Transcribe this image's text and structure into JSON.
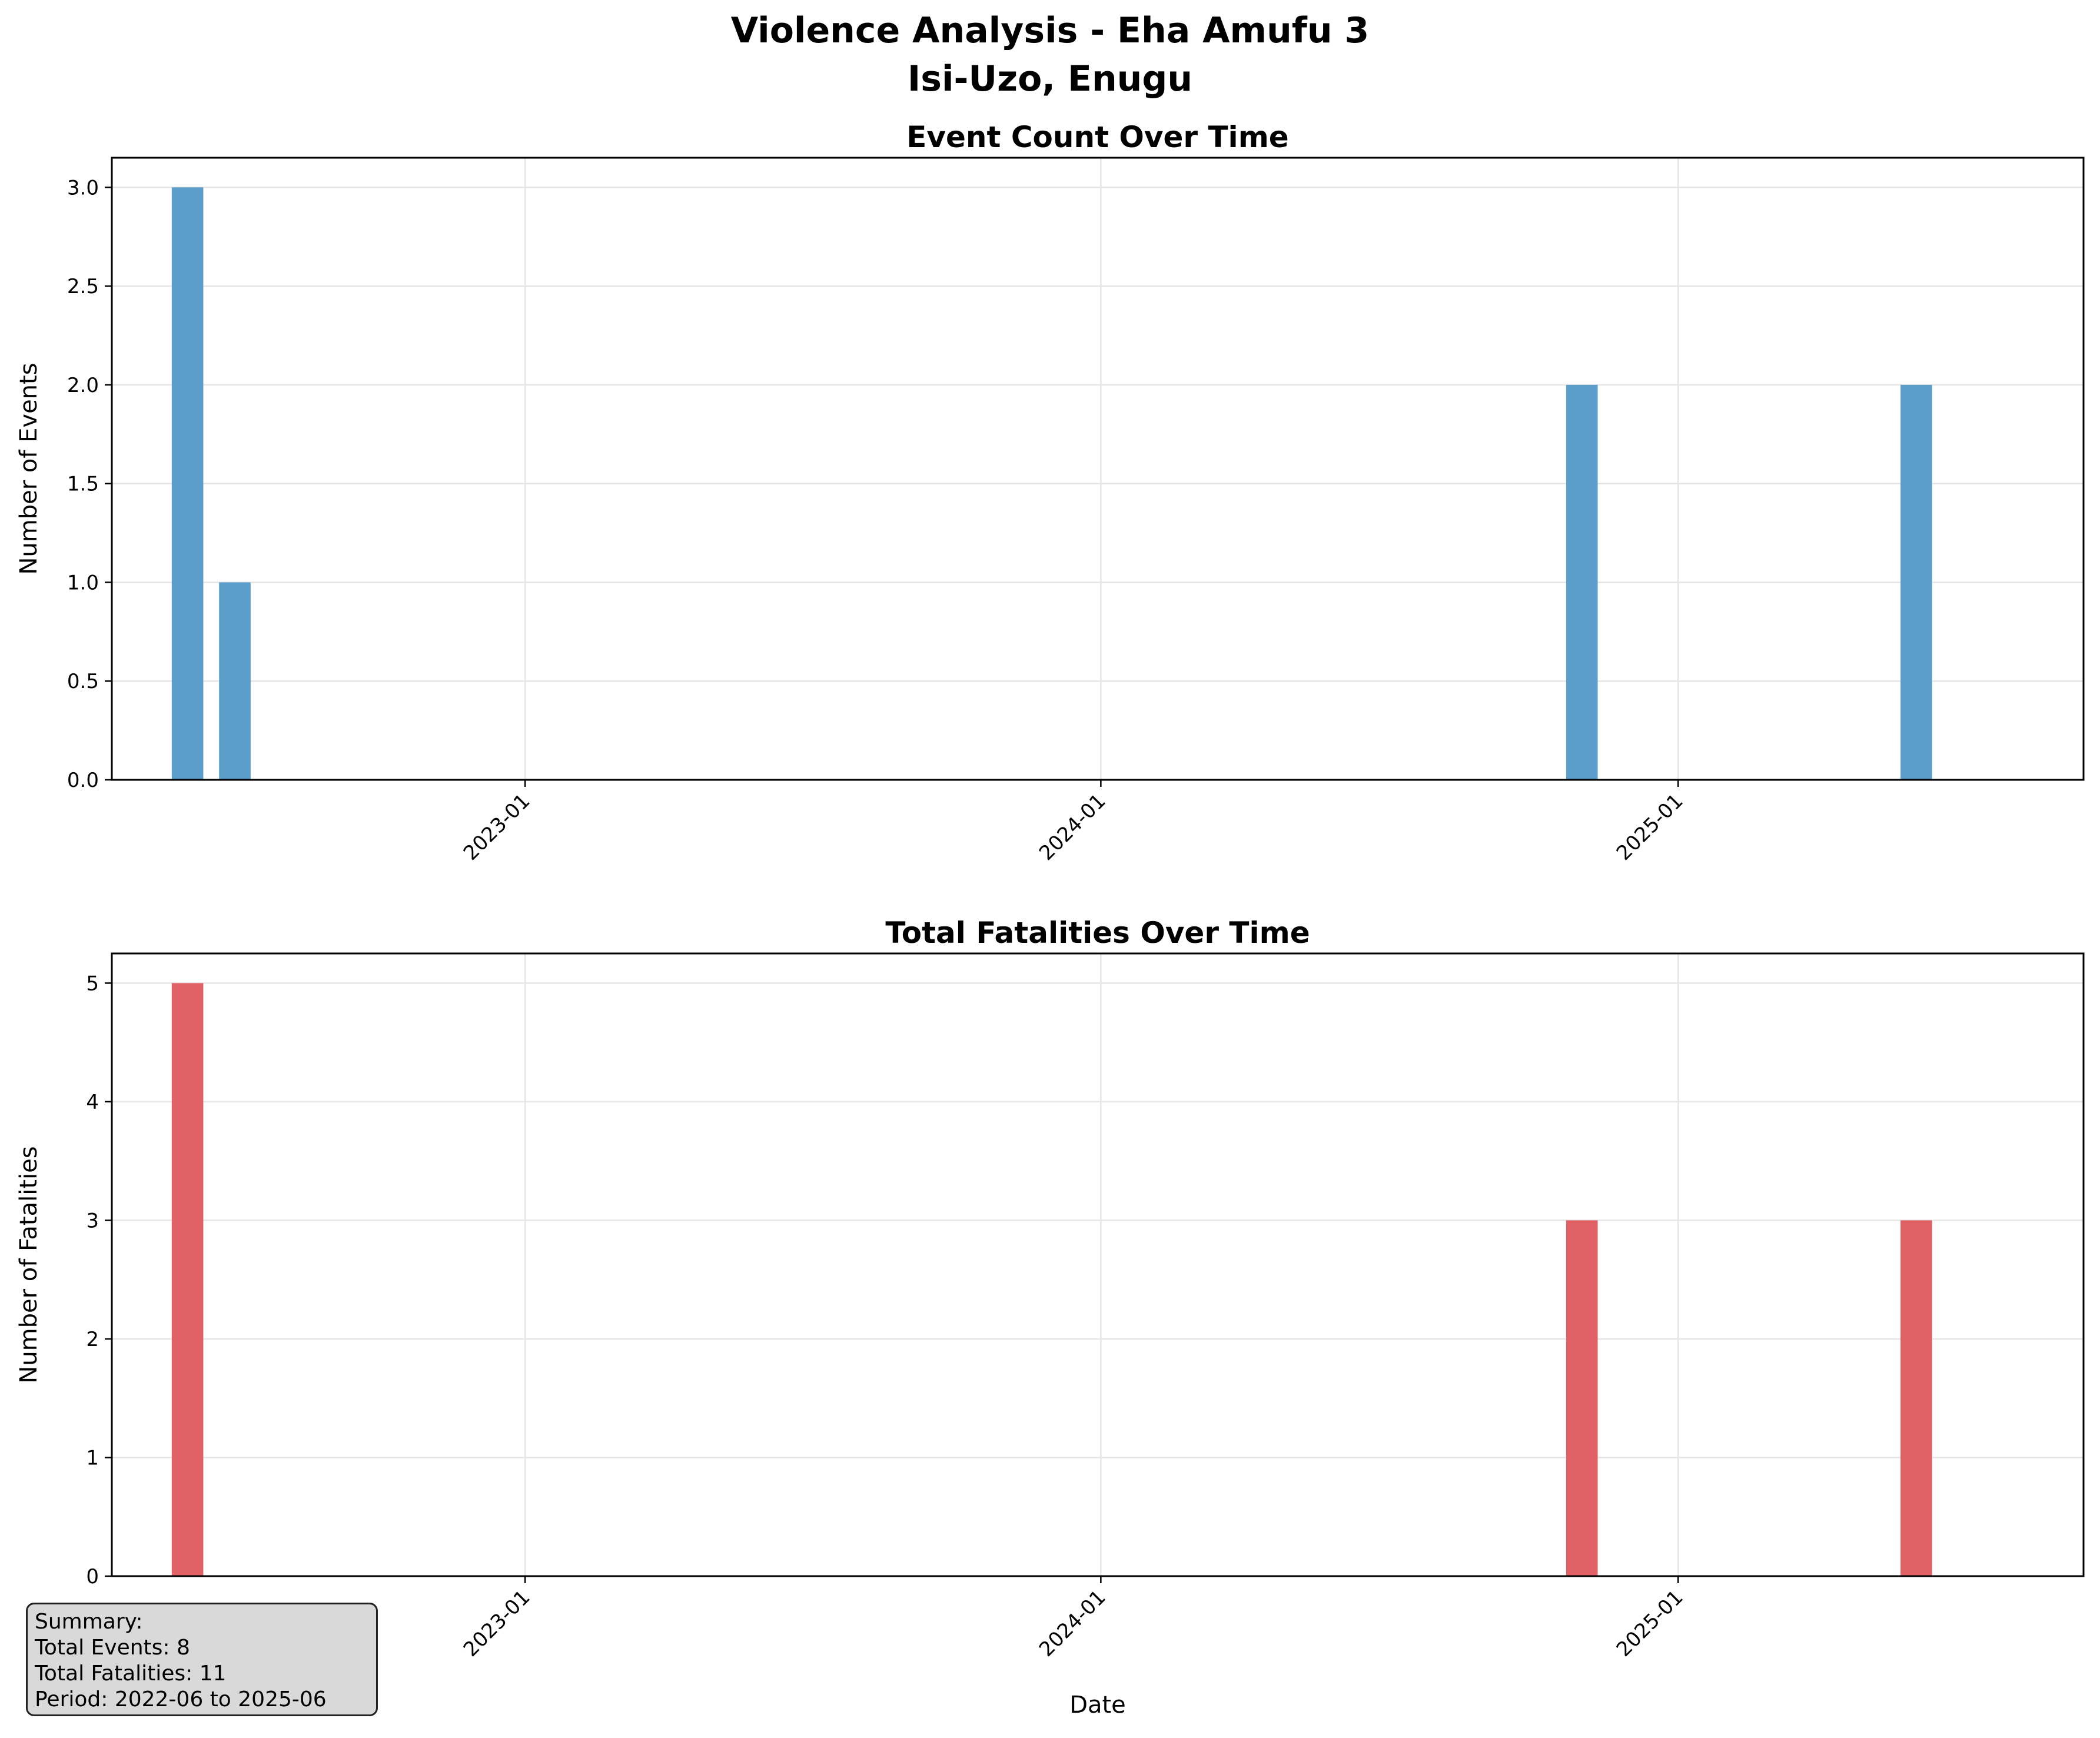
{
  "figure": {
    "title_line1": "Violence Analysis - Eha Amufu 3",
    "title_line2": "Isi-Uzo, Enugu"
  },
  "colors": {
    "events_bar": "#5b9dcb",
    "fatalities_bar": "#e06065",
    "grid": "#e6e6e6",
    "summary_bg": "#d9d9d9"
  },
  "chart_data": [
    {
      "type": "bar",
      "title": "Event Count Over Time",
      "xlabel": "",
      "ylabel": "Number of Events",
      "x_axis": "date (monthly)",
      "xlim": [
        "2022-04-14",
        "2025-09-15"
      ],
      "xticks": [
        "2023-01",
        "2024-01",
        "2025-01"
      ],
      "ylim": [
        0,
        3.15
      ],
      "yticks": [
        "0.0",
        "0.5",
        "1.0",
        "1.5",
        "2.0",
        "2.5",
        "3.0"
      ],
      "grid": true,
      "series": [
        {
          "x": [
            "2022-06",
            "2022-07",
            "2024-11",
            "2025-06"
          ],
          "values": [
            3,
            1,
            2,
            2
          ]
        }
      ]
    },
    {
      "type": "bar",
      "title": "Total Fatalities Over Time",
      "xlabel": "Date",
      "ylabel": "Number of Fatalities",
      "x_axis": "date (monthly)",
      "xlim": [
        "2022-04-14",
        "2025-09-15"
      ],
      "xticks": [
        "2023-01",
        "2024-01",
        "2025-01"
      ],
      "ylim": [
        0,
        5.25
      ],
      "yticks": [
        "0",
        "1",
        "2",
        "3",
        "4",
        "5"
      ],
      "grid": true,
      "series": [
        {
          "x": [
            "2022-06",
            "2022-07",
            "2024-11",
            "2025-06"
          ],
          "values": [
            5,
            0,
            3,
            3
          ]
        }
      ]
    }
  ],
  "summary": {
    "heading": "Summary:",
    "total_events": "Total Events: 8",
    "total_fatalities": "Total Fatalities: 11",
    "period": "Period: 2022-06 to 2025-06"
  }
}
